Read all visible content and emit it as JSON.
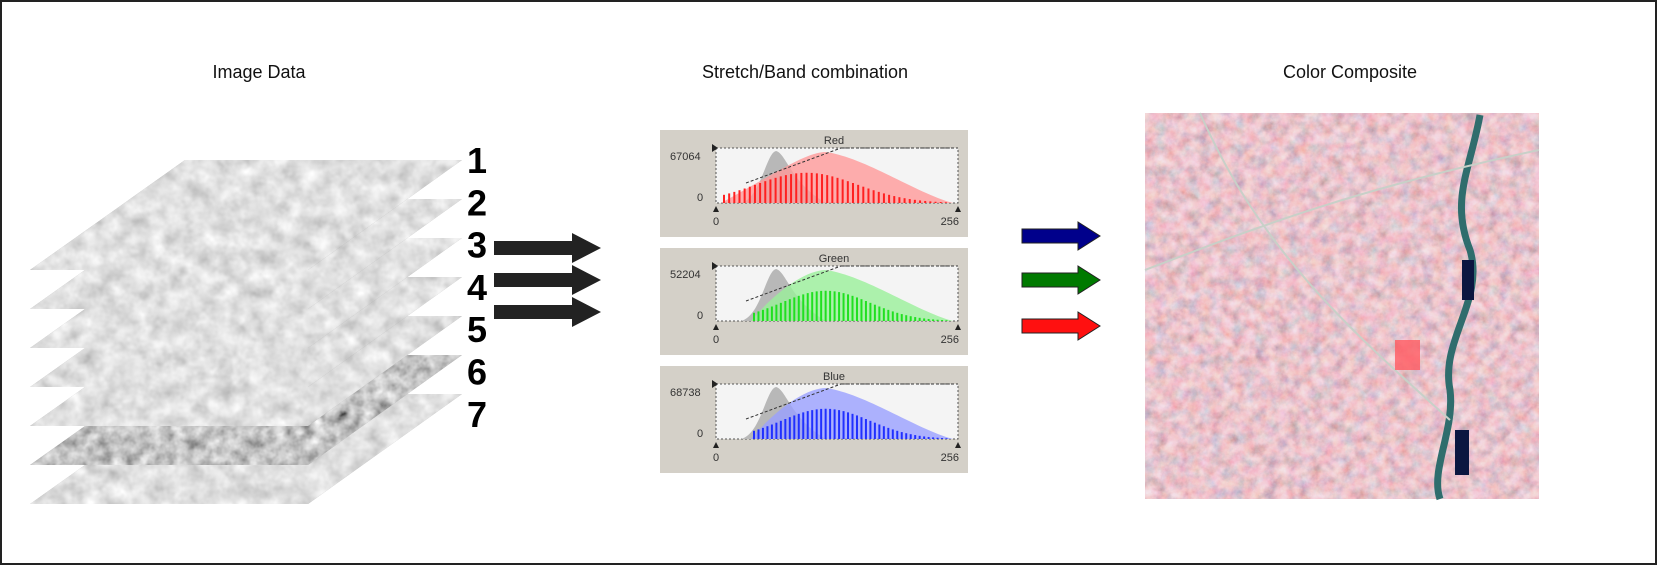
{
  "panels": [
    {
      "title": "Image Data"
    },
    {
      "title": "Stretch/Band combination"
    },
    {
      "title": "Color Composite"
    }
  ],
  "bands": [
    "1",
    "2",
    "3",
    "4",
    "5",
    "6",
    "7"
  ],
  "histograms": [
    {
      "name": "Red",
      "max": "67064",
      "ymin": "0",
      "xmin": "0",
      "xmax": "256"
    },
    {
      "name": "Green",
      "max": "52204",
      "ymin": "0",
      "xmin": "0",
      "xmax": "256"
    },
    {
      "name": "Blue",
      "max": "68738",
      "ymin": "0",
      "xmin": "0",
      "xmax": "256"
    }
  ]
}
